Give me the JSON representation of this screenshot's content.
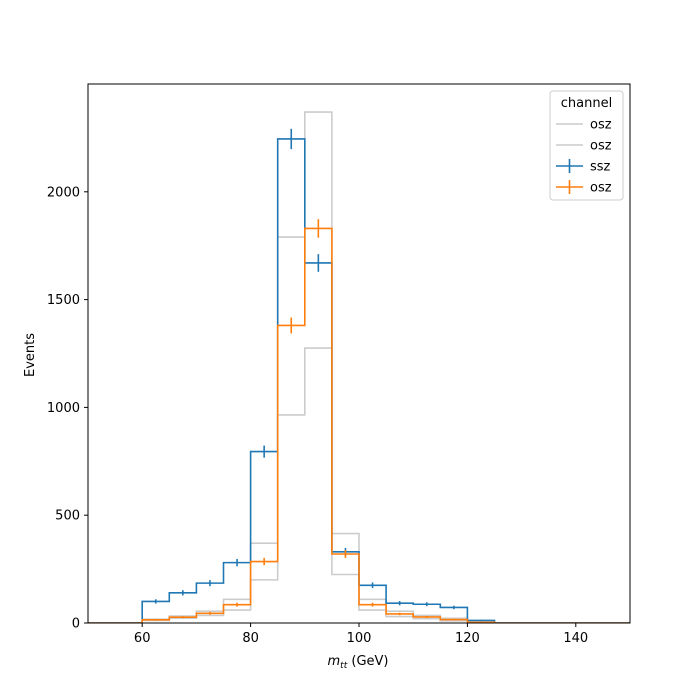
{
  "chart_data": {
    "type": "histogram",
    "xlabel_main": "m",
    "xlabel_sub": "tt",
    "xlabel_unit": " (GeV)",
    "ylabel": "Events",
    "xlim": [
      50,
      150
    ],
    "ylim": [
      0,
      2500
    ],
    "xticks": [
      60,
      80,
      100,
      120,
      140
    ],
    "yticks": [
      0,
      500,
      1000,
      1500,
      2000
    ],
    "grid": false,
    "legend": {
      "title": "channel",
      "placement": "top-right",
      "entries": [
        "osz",
        "osz",
        "ssz",
        "osz"
      ]
    },
    "bin_edges": [
      60,
      65,
      70,
      75,
      80,
      85,
      90,
      95,
      100,
      105,
      110,
      115,
      120,
      125
    ],
    "series": [
      {
        "name": "osz",
        "style": "step",
        "color": "#cccccc",
        "values": [
          12,
          22,
          35,
          60,
          200,
          965,
          1275,
          225,
          60,
          30,
          20,
          10,
          2
        ]
      },
      {
        "name": "osz",
        "style": "step",
        "color": "#cccccc",
        "values": [
          18,
          32,
          55,
          110,
          370,
          1790,
          2370,
          415,
          110,
          55,
          35,
          22,
          3
        ]
      },
      {
        "name": "ssz",
        "style": "step-errorbar",
        "color": "#1f77b4",
        "values": [
          100,
          140,
          185,
          280,
          795,
          2245,
          1670,
          330,
          175,
          92,
          87,
          72,
          12
        ],
        "errors": [
          10,
          12,
          14,
          17,
          28,
          47,
          41,
          18,
          13,
          10,
          9,
          8,
          3
        ]
      },
      {
        "name": "osz",
        "style": "step-errorbar",
        "color": "#ff7f0e",
        "values": [
          15,
          27,
          45,
          85,
          285,
          1380,
          1830,
          320,
          85,
          42,
          28,
          16,
          3
        ],
        "errors": [
          4,
          5,
          7,
          9,
          17,
          37,
          43,
          18,
          9,
          6,
          5,
          4,
          2
        ]
      }
    ]
  }
}
